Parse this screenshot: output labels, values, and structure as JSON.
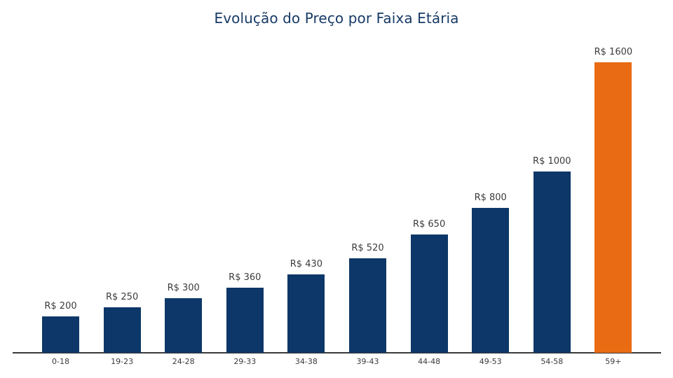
{
  "chart_data": {
    "type": "bar",
    "title": "Evolução do Preço por Faixa Etária",
    "xlabel": "",
    "ylabel": "",
    "categories": [
      "0-18",
      "19-23",
      "24-28",
      "29-33",
      "34-38",
      "39-43",
      "44-48",
      "49-53",
      "54-58",
      "59+"
    ],
    "values": [
      200,
      250,
      300,
      360,
      430,
      520,
      650,
      800,
      1000,
      1600
    ],
    "value_labels": [
      "R$ 200",
      "R$ 250",
      "R$ 300",
      "R$ 360",
      "R$ 430",
      "R$ 520",
      "R$ 650",
      "R$ 800",
      "R$ 1000",
      "R$ 1600"
    ],
    "colors": [
      "#0d3768",
      "#0d3768",
      "#0d3768",
      "#0d3768",
      "#0d3768",
      "#0d3768",
      "#0d3768",
      "#0d3768",
      "#0d3768",
      "#e96b13"
    ],
    "ylim": [
      0,
      1600
    ],
    "grid": false,
    "legend": null
  }
}
